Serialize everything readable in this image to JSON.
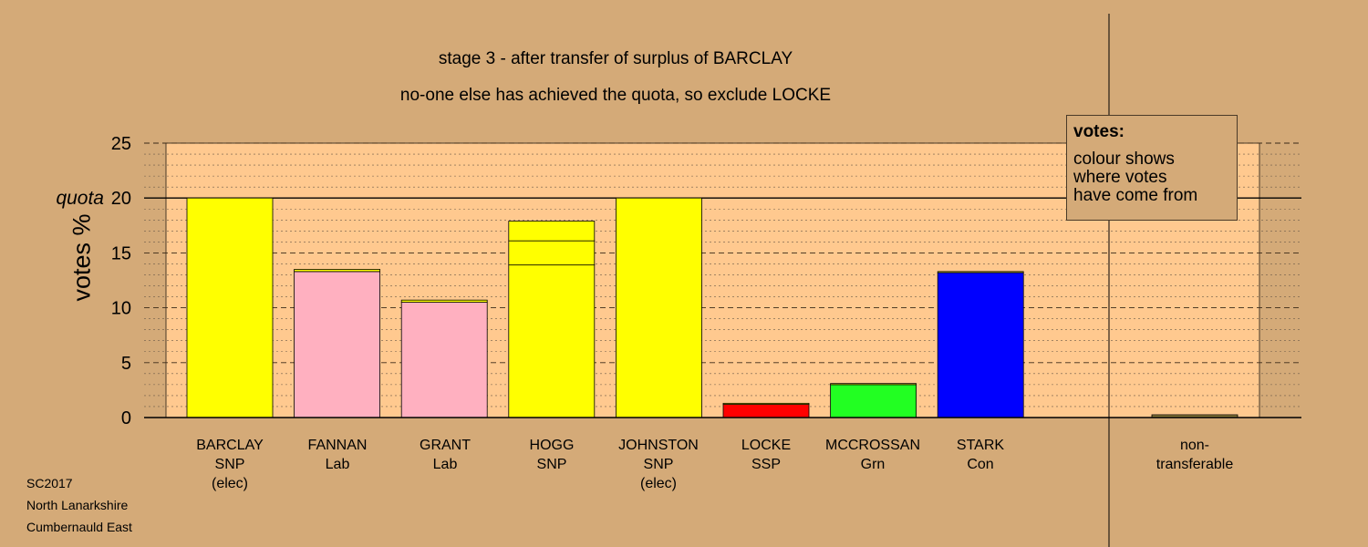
{
  "title_line1": "stage 3 - after transfer of surplus of BARCLAY",
  "title_line2": "no-one else has achieved the quota, so exclude LOCKE",
  "colors": {
    "background": "#d4aa78",
    "plot_bg": "#ffc98f",
    "SNP": "#ffff00",
    "Lab": "#ffb0c0",
    "SSP": "#ff0000",
    "Grn": "#22ff22",
    "Con": "#0000ff",
    "nontransferable": "#8b7a3a"
  },
  "info_box": {
    "heading": "votes:",
    "line1": "colour shows",
    "line2": "where votes",
    "line3": "have come from"
  },
  "source": {
    "line1": "SC2017",
    "line2": "North Lanarkshire",
    "line3": "Cumbernauld East"
  },
  "chart_data": {
    "type": "bar",
    "stacked": true,
    "ylabel": "votes %",
    "ylim": [
      0,
      25
    ],
    "yticks": [
      "0",
      "5",
      "10",
      "15",
      "20",
      "25"
    ],
    "quota_label": "quota",
    "quota": 20,
    "grid": true,
    "candidates": [
      {
        "name": "BARCLAY",
        "party": "SNP",
        "note": "(elec)",
        "segments": [
          {
            "color_key": "SNP",
            "value": 20
          }
        ]
      },
      {
        "name": "FANNAN",
        "party": "Lab",
        "note": "",
        "segments": [
          {
            "color_key": "Lab",
            "value": 13.3
          },
          {
            "color_key": "SNP",
            "value": 0.2
          }
        ]
      },
      {
        "name": "GRANT",
        "party": "Lab",
        "note": "",
        "segments": [
          {
            "color_key": "Lab",
            "value": 10.5
          },
          {
            "color_key": "SNP",
            "value": 0.2
          }
        ]
      },
      {
        "name": "HOGG",
        "party": "SNP",
        "note": "",
        "segments": [
          {
            "color_key": "SNP",
            "value": 13.9
          },
          {
            "color_key": "SNP",
            "value": 2.2
          },
          {
            "color_key": "SNP",
            "value": 1.8
          }
        ]
      },
      {
        "name": "JOHNSTON",
        "party": "SNP",
        "note": "(elec)",
        "segments": [
          {
            "color_key": "SNP",
            "value": 20
          }
        ]
      },
      {
        "name": "LOCKE",
        "party": "SSP",
        "note": "",
        "segments": [
          {
            "color_key": "SSP",
            "value": 1.2
          },
          {
            "color_key": "SNP",
            "value": 0.1
          }
        ]
      },
      {
        "name": "MCCROSSAN",
        "party": "Grn",
        "note": "",
        "segments": [
          {
            "color_key": "Grn",
            "value": 3.0
          },
          {
            "color_key": "SNP",
            "value": 0.1
          }
        ]
      },
      {
        "name": "STARK",
        "party": "Con",
        "note": "",
        "segments": [
          {
            "color_key": "Con",
            "value": 13.2
          },
          {
            "color_key": "SNP",
            "value": 0.1
          }
        ]
      }
    ],
    "nontransferable": {
      "label1": "non-",
      "label2": "transferable",
      "value": 0.25
    }
  }
}
